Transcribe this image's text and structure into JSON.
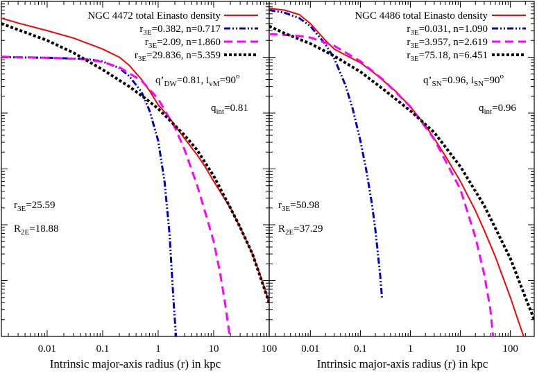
{
  "chart_data": [
    {
      "type": "line",
      "x_scale": "log",
      "y_scale": "log",
      "xlabel": "Intrinsic major-axis radius (r) in kpc",
      "ylabel": "",
      "xlim": [
        0.0015,
        100
      ],
      "ylim": [
        1e-05,
        10
      ],
      "x_tick_labels": [
        "0.01",
        "0.1",
        "1",
        "10",
        "100"
      ],
      "x_ticks": [
        0.01,
        0.1,
        1,
        10,
        100
      ],
      "grid": false,
      "legend_position": "top-right",
      "series": [
        {
          "name": "NGC 4472 total Einasto density",
          "color": "#ff0000",
          "dash": "solid",
          "x": [
            0.0015,
            0.003,
            0.01,
            0.03,
            0.1,
            0.2,
            0.3,
            0.5,
            0.7,
            1,
            1.5,
            2,
            3,
            5,
            7,
            10,
            20,
            30,
            50,
            70,
            100
          ],
          "y": [
            5,
            4.1,
            3.0,
            2.2,
            1.4,
            1.0,
            0.72,
            0.4,
            0.25,
            0.14,
            0.09,
            0.06,
            0.035,
            0.018,
            0.011,
            0.006,
            0.002,
            0.0009,
            0.0003,
            0.00012,
            4e-05
          ]
        },
        {
          "name": "r3E=0.382, n=0.717",
          "label_main": "r",
          "label_sub": "3E",
          "label_rest": "=0.382, n=0.717",
          "color": "#0000cc",
          "dash": "dashdot",
          "x": [
            0.0015,
            0.01,
            0.05,
            0.1,
            0.2,
            0.3,
            0.5,
            0.7,
            1,
            1.3,
            1.6,
            1.9,
            2.1
          ],
          "y": [
            1.0,
            0.98,
            0.93,
            0.84,
            0.64,
            0.46,
            0.24,
            0.11,
            0.032,
            0.006,
            0.0007,
            4e-05,
            1e-05
          ]
        },
        {
          "name": "r3E=2.09, n=1.860",
          "label_main": "r",
          "label_sub": "3E",
          "label_rest": "=2.09, n=1.860",
          "color": "#ff00ff",
          "dash": "dash",
          "x": [
            0.0015,
            0.01,
            0.05,
            0.1,
            0.2,
            0.5,
            1,
            2,
            3,
            5,
            7,
            10,
            13,
            16,
            19,
            21
          ],
          "y": [
            1.02,
            0.98,
            0.92,
            0.82,
            0.66,
            0.38,
            0.18,
            0.055,
            0.022,
            0.0052,
            0.0017,
            0.0005,
            0.00014,
            4e-05,
            1.2e-05,
            5e-06
          ]
        },
        {
          "name": "r3E=29.836, n=5.359",
          "label_main": "r",
          "label_sub": "3E",
          "label_rest": "=29.836, n=5.359",
          "color": "#000000",
          "dash": "dot",
          "x": [
            0.0015,
            0.003,
            0.01,
            0.03,
            0.1,
            0.3,
            0.7,
            1,
            2,
            3,
            5,
            10,
            20,
            30,
            50,
            100
          ],
          "y": [
            4.0,
            3.1,
            2.0,
            1.2,
            0.6,
            0.3,
            0.16,
            0.12,
            0.06,
            0.04,
            0.022,
            0.0075,
            0.002,
            0.0009,
            0.0003,
            4e-05
          ]
        }
      ],
      "annotations": {
        "q_prime": {
          "main": "q’",
          "sub": "DW",
          "rest": "=0.81,  i",
          "sub2": "vM",
          "rest2": "=90",
          "sup": "o"
        },
        "q_int": {
          "main": "q",
          "sub": "int",
          "rest": "=0.81"
        },
        "r3E": {
          "main": "r",
          "sub": "3E",
          "rest": "=25.59"
        },
        "R2E": {
          "main": "R",
          "sub": "2E",
          "rest": "=18.88"
        }
      }
    },
    {
      "type": "line",
      "x_scale": "log",
      "y_scale": "log",
      "xlabel": "Intrinsic major-axis radius (r) in kpc",
      "ylabel": "",
      "xlim": [
        0.0015,
        300
      ],
      "ylim": [
        1e-05,
        10
      ],
      "x_tick_labels": [
        "0.01",
        "0.1",
        "1",
        "10",
        "100"
      ],
      "x_ticks": [
        0.01,
        0.1,
        1,
        10,
        100
      ],
      "grid": false,
      "legend_position": "top-right",
      "series": [
        {
          "name": "NGC 4486 total Einasto density",
          "color": "#ff0000",
          "dash": "solid",
          "x": [
            0.0015,
            0.003,
            0.006,
            0.01,
            0.02,
            0.03,
            0.05,
            0.1,
            0.2,
            0.5,
            1,
            2,
            3,
            5,
            10,
            20,
            30,
            50,
            100,
            200,
            300
          ],
          "y": [
            7.5,
            7.0,
            5.8,
            4.0,
            2.0,
            1.4,
            1.1,
            0.8,
            0.5,
            0.25,
            0.13,
            0.06,
            0.035,
            0.017,
            0.006,
            0.0018,
            0.0008,
            0.00027,
            5e-05,
            8e-06,
            3e-06
          ]
        },
        {
          "name": "r3E=0.031, n=1.090",
          "label_main": "r",
          "label_sub": "3E",
          "label_rest": "=0.031, n=1.090",
          "color": "#0000cc",
          "dash": "dashdot",
          "x": [
            0.0015,
            0.003,
            0.006,
            0.01,
            0.02,
            0.03,
            0.05,
            0.07,
            0.1,
            0.13,
            0.17,
            0.2,
            0.25,
            0.27
          ],
          "y": [
            7.0,
            6.3,
            5.0,
            3.6,
            1.7,
            0.95,
            0.32,
            0.12,
            0.032,
            0.01,
            0.0024,
            0.0008,
            0.00012,
            5e-05
          ]
        },
        {
          "name": "r3E=3.957, n=2.619",
          "label_main": "r",
          "label_sub": "3E",
          "label_rest": "=3.957, n=2.619",
          "color": "#ff00ff",
          "dash": "dash",
          "x": [
            0.0015,
            0.005,
            0.01,
            0.03,
            0.1,
            0.3,
            1,
            3,
            10,
            20,
            30,
            40,
            45
          ],
          "y": [
            2.6,
            2.45,
            2.25,
            1.6,
            0.85,
            0.38,
            0.13,
            0.034,
            0.0043,
            0.0006,
            0.00013,
            3e-05,
            1e-05
          ]
        },
        {
          "name": "r3E=75.18, n=6.451",
          "label_main": "r",
          "label_sub": "3E",
          "label_rest": "=75.18, n=6.451",
          "color": "#000000",
          "dash": "dot",
          "x": [
            0.0015,
            0.003,
            0.01,
            0.03,
            0.1,
            0.3,
            1,
            3,
            10,
            30,
            100,
            200,
            300
          ],
          "y": [
            3.6,
            2.7,
            1.75,
            1.05,
            0.55,
            0.26,
            0.11,
            0.045,
            0.011,
            0.0022,
            0.00025,
            5e-05,
            2e-05
          ]
        }
      ],
      "annotations": {
        "q_prime": {
          "main": "q’",
          "sub": "SN",
          "rest": "=0.96,  i",
          "sub2": "SN",
          "rest2": "=90",
          "sup": "o"
        },
        "q_int": {
          "main": "q",
          "sub": "int",
          "rest": "=0.96"
        },
        "r3E": {
          "main": "r",
          "sub": "3E",
          "rest": "=50.98"
        },
        "R2E": {
          "main": "R",
          "sub": "2E",
          "rest": "=37.29"
        }
      }
    }
  ]
}
